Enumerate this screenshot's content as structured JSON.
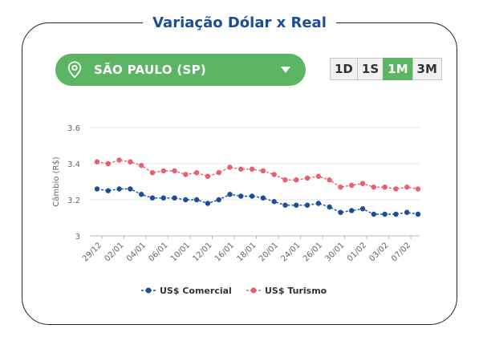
{
  "header": {
    "title": "Variação Dólar x Real"
  },
  "location": {
    "label": "SÃO PAULO (SP)",
    "icon": "map-pin-icon",
    "dropdown_icon": "caret-down-icon"
  },
  "periods": [
    {
      "label": "1D",
      "active": false
    },
    {
      "label": "1S",
      "active": false
    },
    {
      "label": "1M",
      "active": true
    },
    {
      "label": "3M",
      "active": false
    }
  ],
  "colors": {
    "accent": "#5cb562",
    "title": "#1a4f97",
    "comercial": "#1a4f97",
    "turismo": "#e8606e"
  },
  "chart_data": {
    "type": "line",
    "ylabel": "Câmbio (R$)",
    "xlabel": "",
    "ylim": [
      3,
      3.6
    ],
    "yticks": [
      "3",
      "3.2",
      "3.4",
      "3.6"
    ],
    "x_tick_labels": [
      "29/12",
      "02/01",
      "04/01",
      "06/01",
      "10/01",
      "12/01",
      "16/01",
      "18/01",
      "20/01",
      "24/01",
      "26/01",
      "30/01",
      "01/02",
      "03/02",
      "07/02"
    ],
    "grid": true,
    "legend_position": "bottom",
    "series": [
      {
        "name": "US$ Comercial",
        "color": "#1a4f97",
        "values": [
          3.26,
          3.25,
          3.26,
          3.26,
          3.23,
          3.21,
          3.21,
          3.21,
          3.2,
          3.2,
          3.18,
          3.2,
          3.23,
          3.22,
          3.22,
          3.21,
          3.19,
          3.17,
          3.17,
          3.17,
          3.18,
          3.16,
          3.13,
          3.14,
          3.15,
          3.12,
          3.12,
          3.12,
          3.13,
          3.12
        ]
      },
      {
        "name": "US$ Turismo",
        "color": "#e8606e",
        "values": [
          3.41,
          3.4,
          3.42,
          3.41,
          3.39,
          3.35,
          3.36,
          3.36,
          3.34,
          3.35,
          3.33,
          3.35,
          3.38,
          3.37,
          3.37,
          3.36,
          3.34,
          3.31,
          3.31,
          3.32,
          3.33,
          3.31,
          3.27,
          3.28,
          3.29,
          3.27,
          3.27,
          3.26,
          3.27,
          3.26
        ]
      }
    ]
  }
}
